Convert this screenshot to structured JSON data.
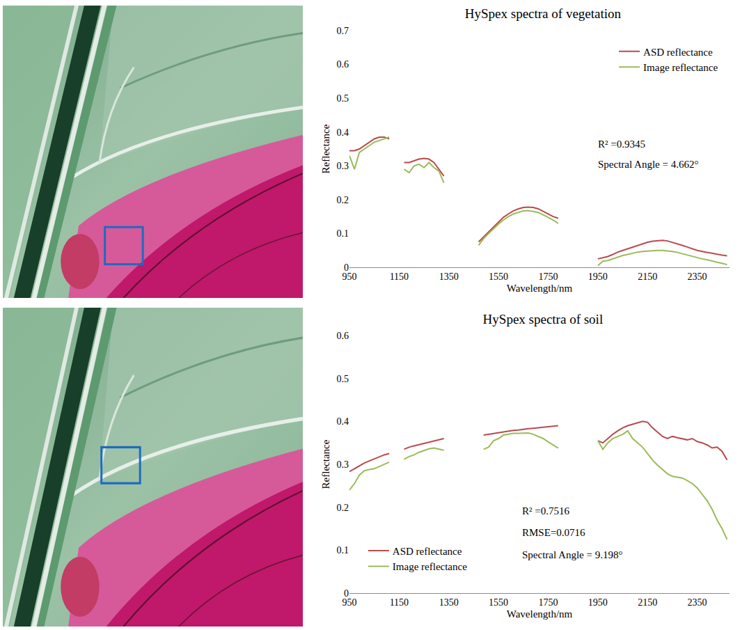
{
  "chart_data": [
    {
      "type": "line",
      "title": "HySpex spectra of vegetation",
      "xlabel": "Wavelength/nm",
      "ylabel": "Reflectance",
      "x": [
        950,
        970,
        990,
        1010,
        1030,
        1050,
        1070,
        1090,
        1110,
        1140,
        1170,
        1190,
        1210,
        1230,
        1250,
        1270,
        1290,
        1310,
        1330,
        1400,
        1470,
        1490,
        1510,
        1530,
        1550,
        1570,
        1590,
        1610,
        1630,
        1650,
        1670,
        1690,
        1710,
        1730,
        1750,
        1770,
        1790,
        1870,
        1950,
        1970,
        1990,
        2010,
        2030,
        2050,
        2070,
        2090,
        2110,
        2130,
        2150,
        2170,
        2190,
        2210,
        2230,
        2250,
        2270,
        2290,
        2310,
        2330,
        2350,
        2370,
        2390,
        2410,
        2430,
        2450,
        2470
      ],
      "series": [
        {
          "name": "ASD reflectance",
          "color": "#b94a4c",
          "values": [
            0.345,
            0.345,
            0.35,
            0.36,
            0.37,
            0.38,
            0.385,
            0.385,
            0.38,
            null,
            0.31,
            0.31,
            0.315,
            0.32,
            0.322,
            0.32,
            0.31,
            0.29,
            0.27,
            null,
            0.075,
            0.09,
            0.105,
            0.12,
            0.135,
            0.148,
            0.158,
            0.167,
            0.173,
            0.177,
            0.178,
            0.177,
            0.173,
            0.166,
            0.158,
            0.15,
            0.145,
            null,
            0.025,
            0.028,
            0.032,
            0.038,
            0.045,
            0.05,
            0.055,
            0.06,
            0.065,
            0.07,
            0.074,
            0.077,
            0.079,
            0.08,
            0.078,
            0.074,
            0.07,
            0.065,
            0.06,
            0.055,
            0.05,
            0.047,
            0.044,
            0.041,
            0.038,
            0.036,
            0.034
          ]
        },
        {
          "name": "Image reflectance",
          "color": "#9bbb59",
          "values": [
            0.33,
            0.29,
            0.34,
            0.35,
            0.36,
            0.37,
            0.375,
            0.38,
            0.385,
            null,
            0.29,
            0.28,
            0.3,
            0.305,
            0.295,
            0.31,
            0.295,
            0.285,
            0.25,
            null,
            0.065,
            0.085,
            0.1,
            0.115,
            0.128,
            0.14,
            0.15,
            0.158,
            0.163,
            0.167,
            0.168,
            0.165,
            0.162,
            0.155,
            0.148,
            0.14,
            0.13,
            null,
            0.005,
            0.018,
            0.02,
            0.025,
            0.03,
            0.035,
            0.038,
            0.042,
            0.045,
            0.047,
            0.048,
            0.05,
            0.05,
            0.05,
            0.049,
            0.047,
            0.044,
            0.04,
            0.036,
            0.032,
            0.028,
            0.025,
            0.022,
            0.018,
            0.015,
            0.012,
            0.008
          ]
        }
      ],
      "xlim": [
        950,
        2480
      ],
      "ylim": [
        0,
        0.7
      ],
      "xticks": [
        950,
        1150,
        1350,
        1550,
        1750,
        1950,
        2150,
        2350
      ],
      "yticks": [
        0,
        0.1,
        0.2,
        0.3,
        0.4,
        0.5,
        0.6,
        0.7
      ],
      "grid": false,
      "legend": "upper right",
      "annotations": [
        "R² =0.9345",
        "Spectral Angle = 4.662°"
      ]
    },
    {
      "type": "line",
      "title": "HySpex spectra of soil",
      "xlabel": "Wavelength/nm",
      "ylabel": "Reflectance",
      "x": [
        950,
        970,
        990,
        1010,
        1030,
        1050,
        1070,
        1090,
        1110,
        1140,
        1170,
        1190,
        1210,
        1230,
        1250,
        1270,
        1290,
        1310,
        1330,
        1410,
        1490,
        1510,
        1530,
        1550,
        1570,
        1590,
        1610,
        1630,
        1650,
        1670,
        1690,
        1710,
        1730,
        1750,
        1770,
        1790,
        1870,
        1950,
        1970,
        1990,
        2010,
        2030,
        2050,
        2070,
        2090,
        2110,
        2130,
        2150,
        2170,
        2190,
        2210,
        2230,
        2250,
        2270,
        2290,
        2310,
        2330,
        2350,
        2370,
        2390,
        2410,
        2430,
        2450,
        2470
      ],
      "series": [
        {
          "name": "ASD reflectance",
          "color": "#b94a4c",
          "values": [
            0.283,
            0.29,
            0.297,
            0.303,
            0.308,
            0.313,
            0.318,
            0.322,
            0.325,
            null,
            0.335,
            0.34,
            0.343,
            0.346,
            0.349,
            0.352,
            0.355,
            0.357,
            0.36,
            null,
            0.368,
            0.37,
            0.372,
            0.374,
            0.376,
            0.378,
            0.379,
            0.38,
            0.382,
            0.383,
            0.384,
            0.385,
            0.386,
            0.387,
            0.388,
            0.39,
            null,
            0.355,
            0.35,
            0.36,
            0.37,
            0.378,
            0.385,
            0.39,
            0.393,
            0.397,
            0.4,
            0.398,
            0.385,
            0.375,
            0.365,
            0.36,
            0.365,
            0.362,
            0.36,
            0.357,
            0.36,
            0.353,
            0.35,
            0.345,
            0.338,
            0.34,
            0.33,
            0.31
          ]
        },
        {
          "name": "Image reflectance",
          "color": "#9bbb59",
          "values": [
            0.24,
            0.255,
            0.275,
            0.285,
            0.288,
            0.29,
            0.295,
            0.3,
            0.305,
            null,
            0.312,
            0.318,
            0.322,
            0.328,
            0.332,
            0.336,
            0.338,
            0.335,
            0.333,
            null,
            0.335,
            0.34,
            0.355,
            0.36,
            0.368,
            0.37,
            0.372,
            0.372,
            0.373,
            0.373,
            0.37,
            0.365,
            0.36,
            0.352,
            0.345,
            0.338,
            null,
            0.355,
            0.335,
            0.35,
            0.36,
            0.365,
            0.37,
            0.378,
            0.36,
            0.35,
            0.34,
            0.325,
            0.31,
            0.298,
            0.288,
            0.278,
            0.272,
            0.27,
            0.268,
            0.262,
            0.255,
            0.245,
            0.23,
            0.215,
            0.195,
            0.17,
            0.15,
            0.125
          ]
        }
      ],
      "xlim": [
        950,
        2480
      ],
      "ylim": [
        0,
        0.6
      ],
      "xticks": [
        950,
        1150,
        1350,
        1550,
        1750,
        1950,
        2150,
        2350
      ],
      "yticks": [
        0,
        0.1,
        0.2,
        0.3,
        0.4,
        0.5,
        0.6
      ],
      "grid": false,
      "legend": "lower left",
      "annotations": [
        "R² =0.7516",
        "RMSE=0.0716",
        "Spectral Angle = 9.198°"
      ]
    }
  ]
}
